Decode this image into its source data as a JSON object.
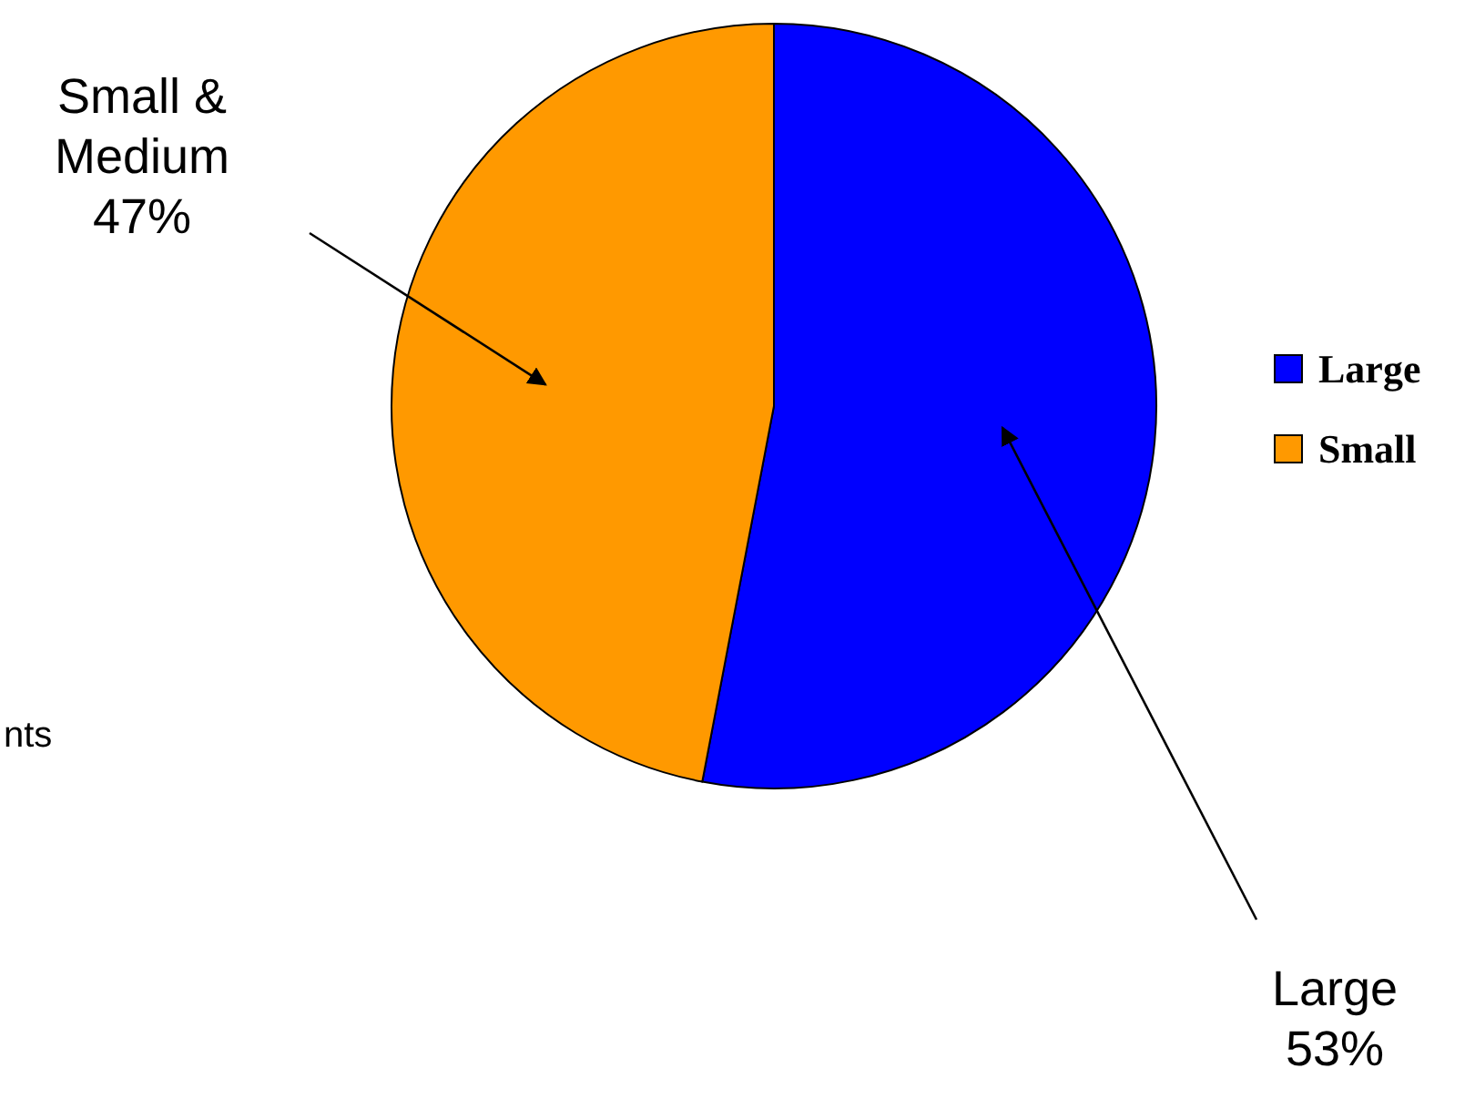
{
  "chart_data": {
    "type": "pie",
    "categories": [
      "Large",
      "Small"
    ],
    "values": [
      53,
      47
    ],
    "colors": [
      "#0000ff",
      "#ff9900"
    ],
    "value_labels": [
      "Large\n53%",
      "Small &\nMedium\n47%"
    ],
    "legend": "right",
    "annotations": [
      "nts"
    ]
  }
}
